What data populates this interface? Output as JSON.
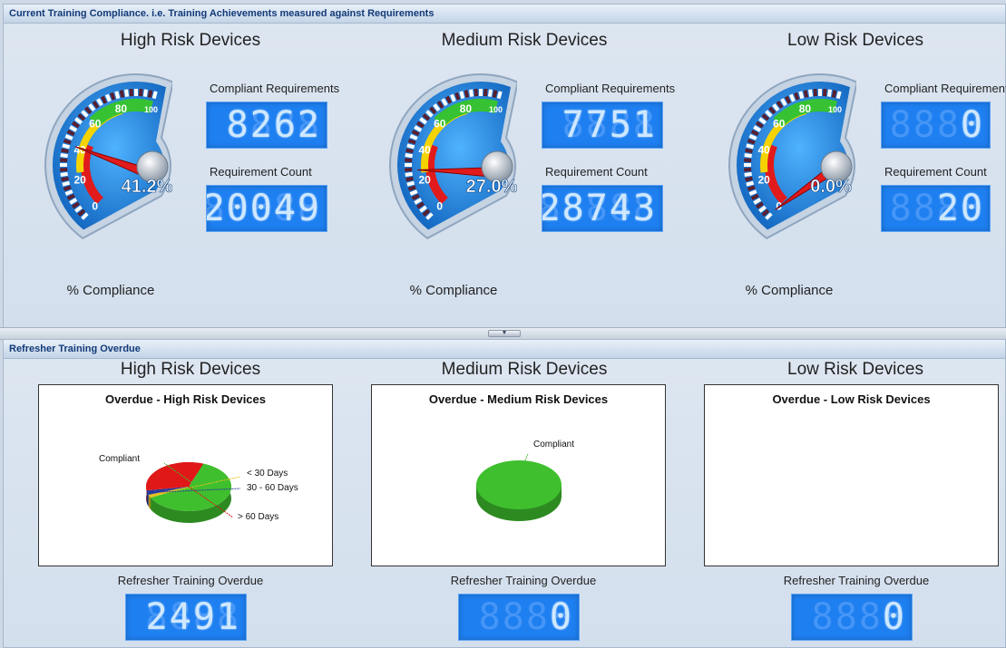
{
  "panels": {
    "compliance_title": "Current Training Compliance. i.e. Training Achievements measured against Requirements",
    "refresher_title": "Refresher Training Overdue"
  },
  "compliance": [
    {
      "title": "High Risk Devices",
      "gauge_value_label": "41.2%",
      "gauge_value": 41.2,
      "gauge_caption": "% Compliance",
      "compliant_label": "Compliant Requirements",
      "compliant_value": "8262",
      "count_label": "Requirement Count",
      "count_value": "20049"
    },
    {
      "title": "Medium Risk Devices",
      "gauge_value_label": "27.0%",
      "gauge_value": 27.0,
      "gauge_caption": "% Compliance",
      "compliant_label": "Compliant Requirements",
      "compliant_value": "7751",
      "count_label": "Requirement Count",
      "count_value": "28743"
    },
    {
      "title": "Low Risk Devices",
      "gauge_value_label": "0.0%",
      "gauge_value": 0.0,
      "gauge_caption": "% Compliance",
      "compliant_label": "Compliant Requirements",
      "compliant_value": "0",
      "count_label": "Requirement Count",
      "count_value": "20"
    }
  ],
  "gauge_ticks": [
    "0",
    "20",
    "40",
    "60",
    "80",
    "100"
  ],
  "refresher": [
    {
      "title": "High Risk Devices",
      "chart_title": "Overdue - High Risk Devices",
      "slices": [
        {
          "label": "Compliant",
          "value": 62,
          "color": "#3fbf2e"
        },
        {
          "label": "< 30 Days",
          "value": 2,
          "color": "#e7c21b"
        },
        {
          "label": "30 - 60 Days",
          "value": 3,
          "color": "#2a3b9c"
        },
        {
          "label": "> 60 Days",
          "value": 33,
          "color": "#e01818"
        }
      ],
      "caption": "Refresher Training Overdue",
      "value": "2491"
    },
    {
      "title": "Medium Risk Devices",
      "chart_title": "Overdue - Medium Risk Devices",
      "slices": [
        {
          "label": "Compliant",
          "value": 100,
          "color": "#3fbf2e"
        }
      ],
      "caption": "Refresher Training Overdue",
      "value": "0"
    },
    {
      "title": "Low Risk Devices",
      "chart_title": "Overdue - Low Risk Devices",
      "slices": [],
      "caption": "Refresher Training Overdue",
      "value": "0"
    }
  ],
  "colors": {
    "lcd_bg": "#1e7ff0",
    "gauge_blue": "#1279d8",
    "zone_red": "#e11b1b",
    "zone_yellow": "#f5d300",
    "zone_green": "#36c232"
  }
}
